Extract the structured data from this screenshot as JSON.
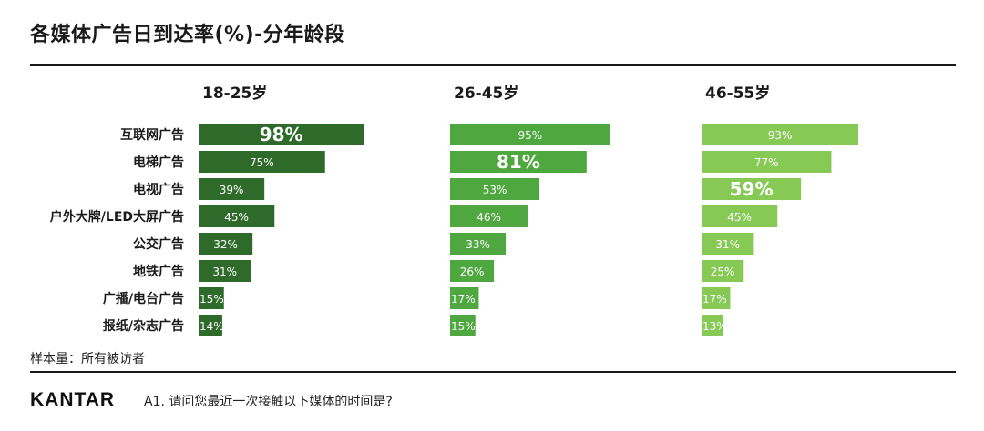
{
  "title": "各媒体广告日到达率(%)-分年龄段",
  "footer": {
    "sample_note": "样本量：所有被访者",
    "logo": "KANTAR",
    "question": "A1. 请问您最近一次接触以下媒体的时间是?"
  },
  "colors": {
    "group1": "#2e6b2a",
    "group2": "#4ea83f",
    "group3": "#86c954",
    "rule": "#1a1a1a"
  },
  "chart_data": {
    "type": "bar",
    "orientation": "horizontal",
    "categories": [
      "互联网广告",
      "电梯广告",
      "电视广告",
      "户外大牌/LED大屏广告",
      "公交广告",
      "地铁广告",
      "广播/电台广告",
      "报纸/杂志广告"
    ],
    "series": [
      {
        "name": "18-25岁",
        "values": [
          98,
          75,
          39,
          45,
          32,
          31,
          15,
          14
        ],
        "highlight_index": 0
      },
      {
        "name": "26-45岁",
        "values": [
          95,
          81,
          53,
          46,
          33,
          26,
          17,
          15
        ],
        "highlight_index": 1
      },
      {
        "name": "46-55岁",
        "values": [
          93,
          77,
          59,
          45,
          31,
          25,
          17,
          13
        ],
        "highlight_index": 2
      }
    ],
    "value_suffix": "%",
    "xlim": [
      0,
      100
    ],
    "grid": false,
    "legend": "none"
  }
}
